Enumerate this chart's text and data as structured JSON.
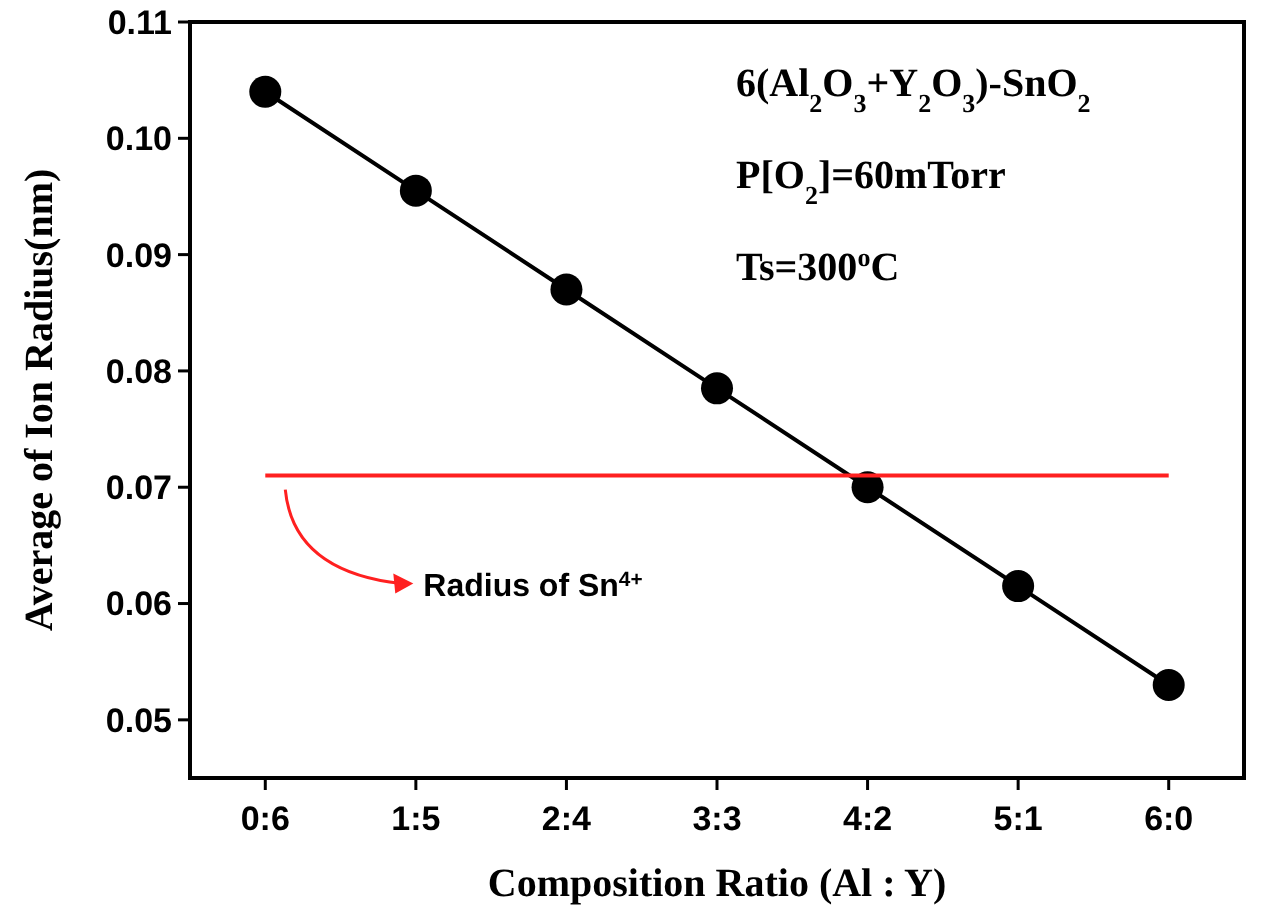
{
  "chart_data": {
    "type": "line",
    "xlabel": "Composition Ratio (Al : Y)",
    "ylabel": "Average of Ion Radius(nm)",
    "categories": [
      "0:6",
      "1:5",
      "2:4",
      "3:3",
      "4:2",
      "5:1",
      "6:0"
    ],
    "series": [
      {
        "color": "#000000",
        "values": [
          0.104,
          0.0955,
          0.087,
          0.0785,
          0.07,
          0.0615,
          0.053
        ]
      }
    ],
    "marker": "circle",
    "line_style": "solid",
    "ylim": [
      0.045,
      0.11
    ],
    "yticks": [
      0.05,
      0.06,
      0.07,
      0.08,
      0.09,
      {
        "value": 0.1,
        "label": "0.10"
      },
      0.11
    ],
    "ref_lines": [
      {
        "axis": "y",
        "value": 0.071,
        "label": "Radius of Sn$^{4+}$",
        "color": "#ff2020"
      }
    ],
    "annotations": [
      "6(Al$_{2}$O$_{3}$+Y$_{2}$O$_{3}$)-SnO$_{2}$",
      "P[O$_{2}$]=60mTorr",
      "Ts=300$^{o}$C"
    ]
  }
}
